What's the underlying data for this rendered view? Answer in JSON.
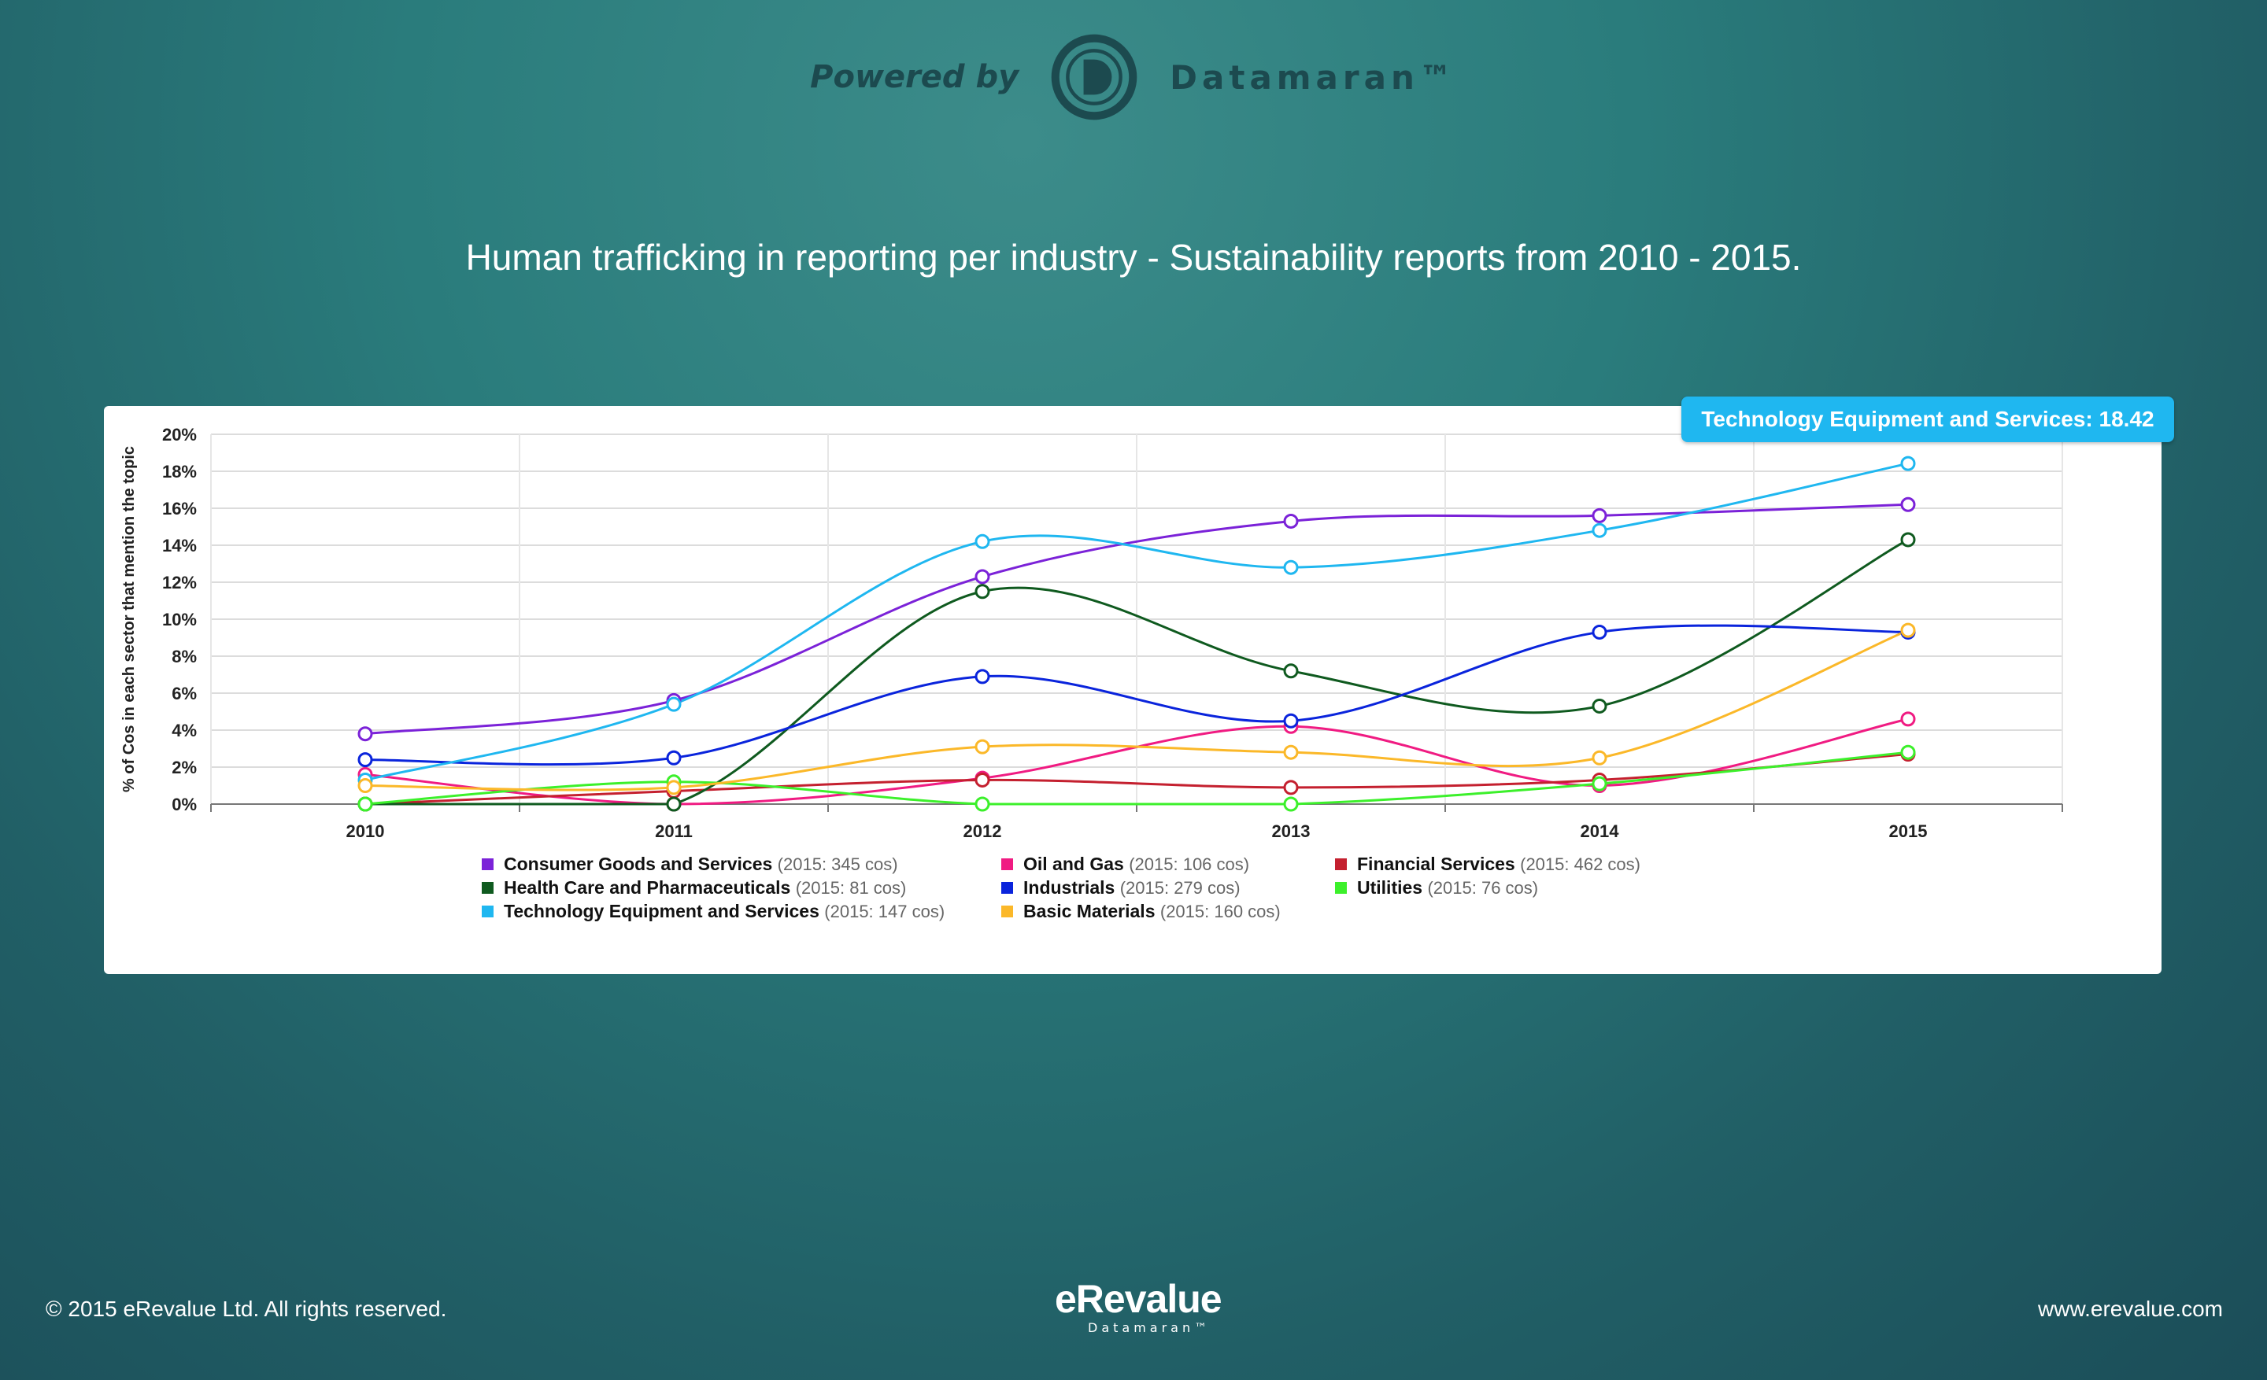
{
  "header": {
    "powered_by": "Powered by",
    "brand": "Datamaran™"
  },
  "title": "Human trafficking in reporting per industry - Sustainability reports from 2010 - 2015.",
  "tooltip": "Technology Equipment and Services: 18.42",
  "footer": {
    "copyright": "© 2015 eRevalue Ltd. All rights reserved.",
    "logo_main": "eRevalue",
    "logo_sub": "Datamaran™",
    "website": "www.erevalue.com"
  },
  "chart_data": {
    "type": "line",
    "title": "Human trafficking in reporting per industry - Sustainability reports from 2010 - 2015.",
    "xlabel": "",
    "ylabel": "% of Cos in each sector that mention the topic",
    "x": [
      "2010",
      "2011",
      "2012",
      "2013",
      "2014",
      "2015"
    ],
    "ylim": [
      0,
      20
    ],
    "yticks": [
      "0%",
      "2%",
      "4%",
      "6%",
      "8%",
      "10%",
      "12%",
      "14%",
      "16%",
      "18%",
      "20%"
    ],
    "grid": true,
    "legend_position": "bottom",
    "series": [
      {
        "name": "Consumer Goods and Services",
        "note": "(2015: 345 cos)",
        "color": "#7b22d8",
        "values": [
          3.8,
          5.6,
          12.3,
          15.3,
          15.6,
          16.2
        ]
      },
      {
        "name": "Oil and Gas",
        "note": "(2015: 106 cos)",
        "color": "#f01b82",
        "values": [
          1.6,
          0.0,
          1.4,
          4.2,
          1.0,
          4.6
        ]
      },
      {
        "name": "Financial Services",
        "note": "(2015: 462 cos)",
        "color": "#c4202f",
        "values": [
          0.0,
          0.7,
          1.3,
          0.9,
          1.3,
          2.7
        ]
      },
      {
        "name": "Health Care and Pharmaceuticals",
        "note": "(2015: 81 cos)",
        "color": "#0f5a1f",
        "values": [
          0.0,
          0.0,
          11.5,
          7.2,
          5.3,
          14.3
        ]
      },
      {
        "name": "Industrials",
        "note": "(2015: 279 cos)",
        "color": "#0a24dc",
        "values": [
          2.4,
          2.5,
          6.9,
          4.5,
          9.3,
          9.3
        ]
      },
      {
        "name": "Utilities",
        "note": "(2015: 76 cos)",
        "color": "#3cf02b",
        "values": [
          0.0,
          1.2,
          0.0,
          0.0,
          1.1,
          2.8
        ]
      },
      {
        "name": "Technology Equipment and Services",
        "note": "(2015: 147 cos)",
        "color": "#1fb7f0",
        "values": [
          1.3,
          5.4,
          14.2,
          12.8,
          14.8,
          18.42
        ]
      },
      {
        "name": "Basic Materials",
        "note": "(2015: 160 cos)",
        "color": "#fbb829",
        "values": [
          1.0,
          0.9,
          3.1,
          2.8,
          2.5,
          9.4
        ]
      }
    ]
  }
}
